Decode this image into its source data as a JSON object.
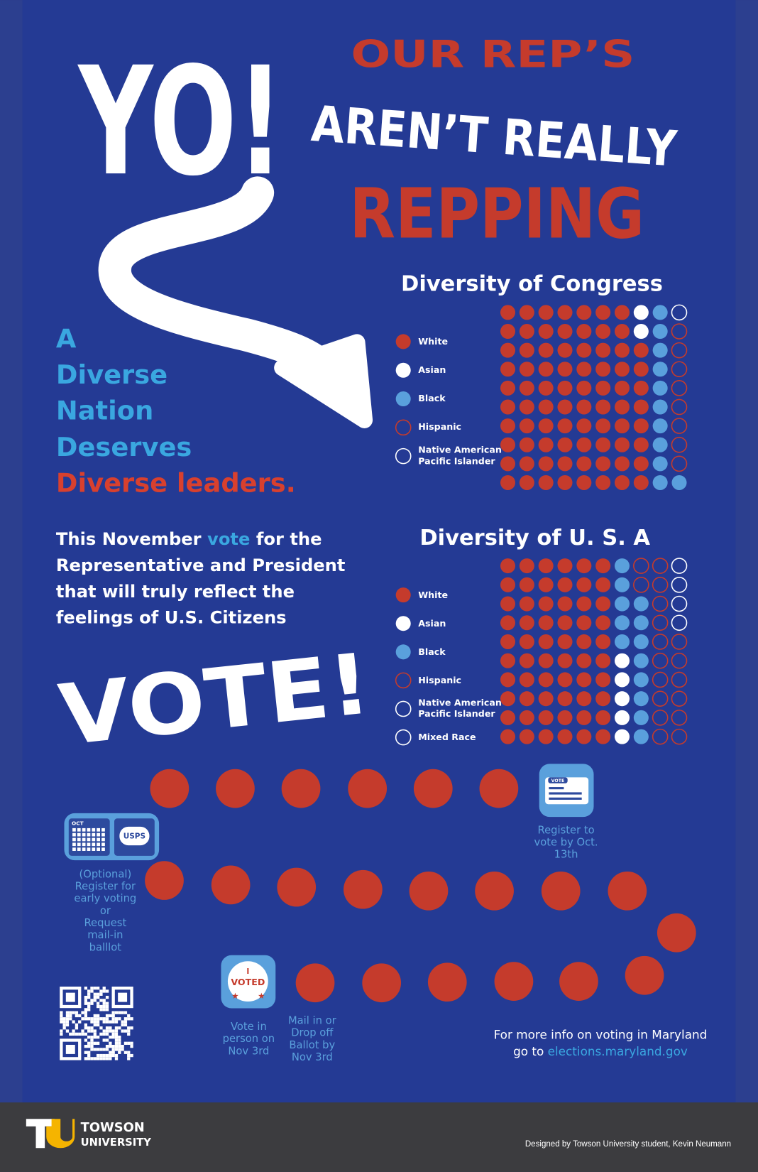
{
  "poster": {
    "yo": "YO!",
    "headline": [
      "OUR REP’S",
      "AREN’T REALLY",
      "REPPING"
    ],
    "tagline": [
      "A",
      "Diverse",
      "Nation",
      "Deserves",
      "Diverse leaders."
    ],
    "message": {
      "lead": "This November ",
      "highlight": "vote",
      "tail": " for the",
      "lines": [
        "Representative and President",
        "that will truly reflect the",
        "feelings of U.S. Citizens"
      ]
    },
    "call": "VOTE!",
    "steps": [
      {
        "icon": "VOTE",
        "caption": [
          "Register to",
          "vote by Oct.",
          "13th"
        ]
      },
      {
        "icons": [
          "OCT",
          "USPS"
        ],
        "caption": [
          "(Optional)",
          "Register for",
          "early voting",
          "or",
          "Request",
          "mail-in",
          "balllot"
        ]
      },
      {
        "icon": [
          "I",
          "VOTED"
        ],
        "caption": [
          "Vote in",
          "person on",
          "Nov 3rd"
        ]
      },
      {
        "caption": [
          "Mail in or",
          "Drop off",
          "Ballot by",
          "Nov 3rd"
        ]
      }
    ],
    "info": {
      "line1": "For more info on voting in Maryland",
      "lead": "go to ",
      "link": "elections.maryland.gov"
    },
    "footer": {
      "name": [
        "TOWSON",
        "UNIVERSITY"
      ],
      "credit": "Designed by Towson University student, Kevin Neumann"
    }
  },
  "chart_data": [
    {
      "type": "waffle",
      "title": "Diversity of Congress",
      "categories": [
        "White",
        "Asian",
        "Black",
        "Hispanic",
        "Native American Pacific Islander"
      ],
      "values": [
        78,
        2,
        11,
        8,
        1
      ],
      "colors": [
        "#c53b2c",
        "#ffffff",
        "#5aa0dc",
        "#c53b2c",
        "#ffffff"
      ],
      "styles": [
        "solid",
        "solid",
        "solid",
        "outline",
        "outline"
      ]
    },
    {
      "type": "waffle",
      "title": "Diversity of  U. S. A",
      "categories": [
        "White",
        "Asian",
        "Black",
        "Hispanic",
        "Native American Pacific Islander",
        "Mixed Race"
      ],
      "values": [
        60,
        5,
        13,
        18,
        2,
        2
      ],
      "colors": [
        "#c53b2c",
        "#ffffff",
        "#5aa0dc",
        "#c53b2c",
        "#ffffff",
        "#ffffff"
      ],
      "styles": [
        "solid",
        "solid",
        "solid",
        "outline",
        "outline",
        "outline"
      ]
    }
  ]
}
